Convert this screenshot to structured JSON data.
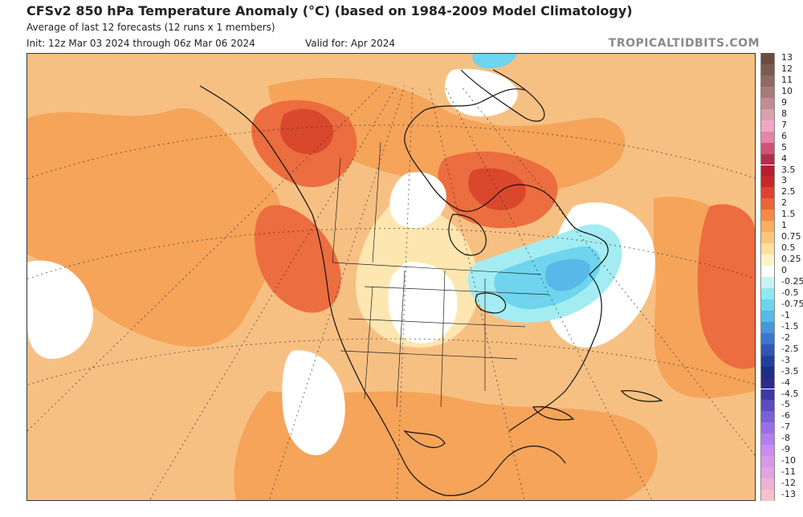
{
  "header": {
    "title": "CFSv2 850 hPa Temperature Anomaly (°C) (based on 1984-2009 Model Climatology)",
    "subtitle": "Average of last 12 forecasts (12 runs x 1 members)",
    "init": "Init: 12z Mar 03 2024 through 06z Mar 06 2024",
    "valid": "Valid for: Apr 2024",
    "brand": "TROPICALTIDBITS.COM"
  },
  "legend": {
    "entries": [
      {
        "label": "13",
        "color": "#6b4b3e"
      },
      {
        "label": "12",
        "color": "#7d5a50"
      },
      {
        "label": "11",
        "color": "#8f6a62"
      },
      {
        "label": "10",
        "color": "#a57c78"
      },
      {
        "label": "9",
        "color": "#c08e91"
      },
      {
        "label": "8",
        "color": "#dc9fb0"
      },
      {
        "label": "7",
        "color": "#f3a6c8"
      },
      {
        "label": "6",
        "color": "#e784a8"
      },
      {
        "label": "5",
        "color": "#cc5478"
      },
      {
        "label": "4",
        "color": "#b0304c"
      },
      {
        "label": "3.5",
        "color": "#b81e2e"
      },
      {
        "label": "3",
        "color": "#c9282a"
      },
      {
        "label": "2.5",
        "color": "#df4330"
      },
      {
        "label": "2",
        "color": "#ec6438"
      },
      {
        "label": "1.5",
        "color": "#f58a45"
      },
      {
        "label": "1",
        "color": "#f9ad5e"
      },
      {
        "label": "0.75",
        "color": "#fbc67d"
      },
      {
        "label": "0.5",
        "color": "#fde09f"
      },
      {
        "label": "0.25",
        "color": "#fef3c8"
      },
      {
        "label": "0",
        "color": "#ffffff"
      },
      {
        "label": "-0.25",
        "color": "#c8f3f5"
      },
      {
        "label": "-0.5",
        "color": "#92e8ee"
      },
      {
        "label": "-0.75",
        "color": "#6ad6ec"
      },
      {
        "label": "-1",
        "color": "#58b8e8"
      },
      {
        "label": "-1.5",
        "color": "#4896dc"
      },
      {
        "label": "-2",
        "color": "#3b75cc"
      },
      {
        "label": "-2.5",
        "color": "#2f58b4"
      },
      {
        "label": "-3",
        "color": "#22409a"
      },
      {
        "label": "-3.5",
        "color": "#1c2f82"
      },
      {
        "label": "-4",
        "color": "#2b2b8c"
      },
      {
        "label": "-4.5",
        "color": "#3d3aa6"
      },
      {
        "label": "-5",
        "color": "#5a4cc0"
      },
      {
        "label": "-6",
        "color": "#7a5fd6"
      },
      {
        "label": "-7",
        "color": "#9a70e6"
      },
      {
        "label": "-8",
        "color": "#b27ef0"
      },
      {
        "label": "-9",
        "color": "#c88cf2"
      },
      {
        "label": "-10",
        "color": "#d898ea"
      },
      {
        "label": "-11",
        "color": "#e2a4e0"
      },
      {
        "label": "-12",
        "color": "#eeb2d8"
      },
      {
        "label": "-13",
        "color": "#f6c2c8"
      }
    ]
  },
  "map": {
    "region": "North America",
    "colors": {
      "background_anomaly": "#f7c083",
      "warm_moderate": "#f5a45a",
      "warm_strong": "#ec6d3f",
      "warm_max": "#d9482d",
      "neutral": "#ffffff",
      "near_zero_warm": "#fde6b0",
      "cool_light": "#a3ecf2",
      "cool": "#6fd4ee",
      "cool_strong": "#58b8e8",
      "outline": "#111111",
      "graticule": "#333333"
    }
  }
}
